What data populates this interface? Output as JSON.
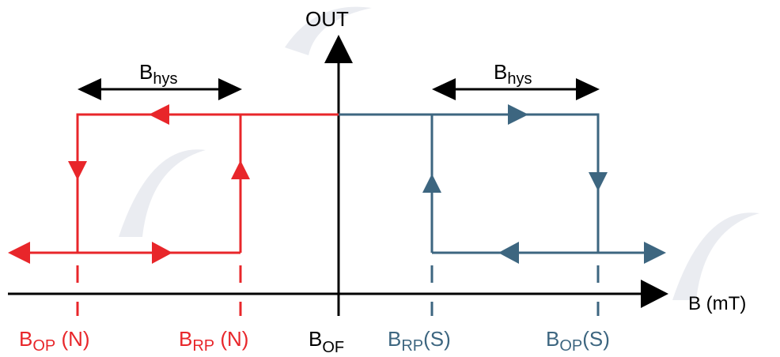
{
  "axes": {
    "y_label": "OUT",
    "x_label": "B (mT)"
  },
  "colors": {
    "north": "#e8262a",
    "south": "#3d6680",
    "axis": "#000000"
  },
  "hysteresis": {
    "left": {
      "main": "B",
      "sub": "hys"
    },
    "right": {
      "main": "B",
      "sub": "hys"
    }
  },
  "thresholds": {
    "bop_n": {
      "main": "B",
      "sub": "OP",
      "suffix": " (N)"
    },
    "brp_n": {
      "main": "B",
      "sub": "RP",
      "suffix": " (N)"
    },
    "bof": {
      "main": "B",
      "sub": "OF",
      "suffix": ""
    },
    "brp_s": {
      "main": "B",
      "sub": "RP",
      "suffix": "(S)"
    },
    "bop_s": {
      "main": "B",
      "sub": "OP",
      "suffix": "(S)"
    }
  }
}
